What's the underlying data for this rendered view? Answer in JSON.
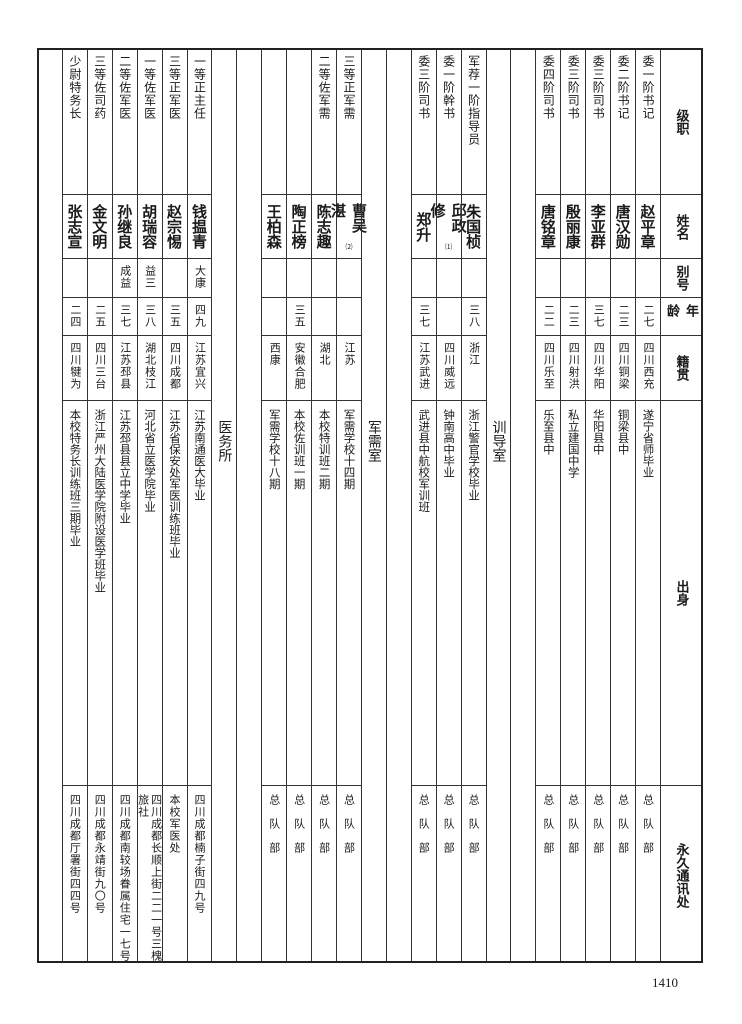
{
  "header": {
    "rank": "级职",
    "name": "姓名",
    "alias": "别号",
    "age": "年龄",
    "native": "籍贯",
    "origin": "出身",
    "address": "永久通讯处"
  },
  "sections": [
    {
      "label": "",
      "rows": [
        {
          "rank": "委一阶书记",
          "name": "赵平章",
          "note": "",
          "alias": "",
          "age": "二七",
          "native": "四川西充",
          "origin": "遂宁省师毕业",
          "address": "总队部"
        },
        {
          "rank": "委二阶书记",
          "name": "唐汉勋",
          "note": "",
          "alias": "",
          "age": "二三",
          "native": "四川铜梁",
          "origin": "铜梁县中",
          "address": "总队部"
        },
        {
          "rank": "委三阶司书",
          "name": "李亚群",
          "note": "",
          "alias": "",
          "age": "三七",
          "native": "四川华阳",
          "origin": "华阳县中",
          "address": "总队部"
        },
        {
          "rank": "委三阶司书",
          "name": "殷丽康",
          "note": "",
          "alias": "",
          "age": "二三",
          "native": "四川射洪",
          "origin": "私立建国中学",
          "address": "总队部"
        },
        {
          "rank": "委四阶司书",
          "name": "唐铭章",
          "note": "",
          "alias": "",
          "age": "二二",
          "native": "四川乐至",
          "origin": "乐至县中",
          "address": "总队部"
        }
      ]
    },
    {
      "label": "训导室",
      "rows": [
        {
          "rank": "军荐一阶指导员",
          "name": "朱国桢",
          "note": "",
          "alias": "",
          "age": "三八",
          "native": "浙江",
          "origin": "浙江警官学校毕业",
          "address": "总队部"
        },
        {
          "rank": "委一阶幹书",
          "name": "邱政修",
          "note": "⑴",
          "alias": "",
          "age": "",
          "native": "四川威远",
          "origin": "钟南高中毕业",
          "address": "总队部"
        },
        {
          "rank": "委三阶司书",
          "name": "郑升",
          "note": "",
          "alias": "",
          "age": "三七",
          "native": "江苏武进",
          "origin": "武进县中航校军训班",
          "address": "总队部"
        }
      ]
    },
    {
      "label": "军需室",
      "rows": [
        {
          "rank": "三等正军需",
          "name": "曹吴湛",
          "note": "⑵",
          "alias": "",
          "age": "",
          "native": "江苏",
          "origin": "军需学校十四期",
          "address": "总队部"
        },
        {
          "rank": "二等佐军需",
          "name": "陈志趣",
          "note": "",
          "alias": "",
          "age": "",
          "native": "湖北",
          "origin": "本校特训班二期",
          "address": "总队部"
        },
        {
          "rank": "",
          "name": "陶正榜",
          "note": "",
          "alias": "",
          "age": "三五",
          "native": "安徽合肥",
          "origin": "本校佐训班一期",
          "address": "总队部"
        },
        {
          "rank": "",
          "name": "王柏森",
          "note": "",
          "alias": "",
          "age": "",
          "native": "西康",
          "origin": "军需学校十八期",
          "address": "总队部"
        }
      ]
    },
    {
      "label": "医务所",
      "rows": [
        {
          "rank": "一等正主任",
          "name": "钱揾青",
          "note": "",
          "alias": "大康",
          "age": "四九",
          "native": "江苏宜兴",
          "origin": "江苏南通医大毕业",
          "address": "四川成都楠子街四九号"
        },
        {
          "rank": "三等正军医",
          "name": "赵宗惕",
          "note": "",
          "alias": "",
          "age": "三五",
          "native": "四川成都",
          "origin": "江苏省保安处军医训练班毕业",
          "address": "本校军医处"
        },
        {
          "rank": "一等佐军医",
          "name": "胡瑞容",
          "note": "",
          "alias": "益三",
          "age": "三八",
          "native": "湖北枝江",
          "origin": "河北省立医学院毕业",
          "address": "四川成都长顺上街二二一号三槐旅社"
        },
        {
          "rank": "二等佐军医",
          "name": "孙继良",
          "note": "",
          "alias": "成益",
          "age": "三七",
          "native": "江苏邳县",
          "origin": "江苏邳县县立中学毕业",
          "address": "四川成都南较场眷属住宅一七号"
        },
        {
          "rank": "三等佐司药",
          "name": "金文明",
          "note": "",
          "alias": "",
          "age": "二五",
          "native": "四川三台",
          "origin": "浙江严州大陆医学院附设医学班毕业",
          "address": "四川成都永靖街九〇号"
        },
        {
          "rank": "少尉特务长",
          "name": "张志宣",
          "note": "",
          "alias": "",
          "age": "二四",
          "native": "四川犍为",
          "origin": "本校特务长训练班三期毕业",
          "address": "四川成都厅署街四四号"
        }
      ]
    }
  ],
  "page_number": "1410"
}
